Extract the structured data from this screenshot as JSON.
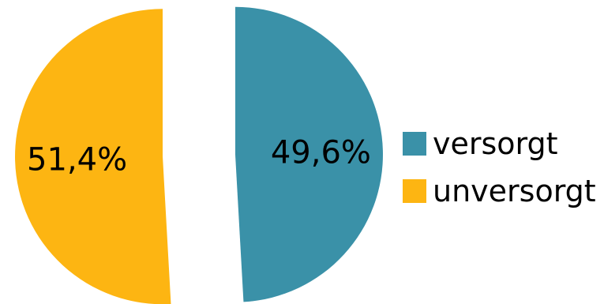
{
  "chart_data": {
    "type": "pie",
    "title": "",
    "categories": [
      "versorgt",
      "unversorgt"
    ],
    "values": [
      49.6,
      51.4
    ],
    "data_labels": [
      "49,6%",
      "51,4%"
    ],
    "colors": [
      "#3a91a8",
      "#fdb512"
    ],
    "exploded": true,
    "legend_position": "right"
  },
  "legend": {
    "items": [
      {
        "label": "versorgt",
        "color": "#3a91a8"
      },
      {
        "label": "unversorgt",
        "color": "#fdb512"
      }
    ]
  }
}
